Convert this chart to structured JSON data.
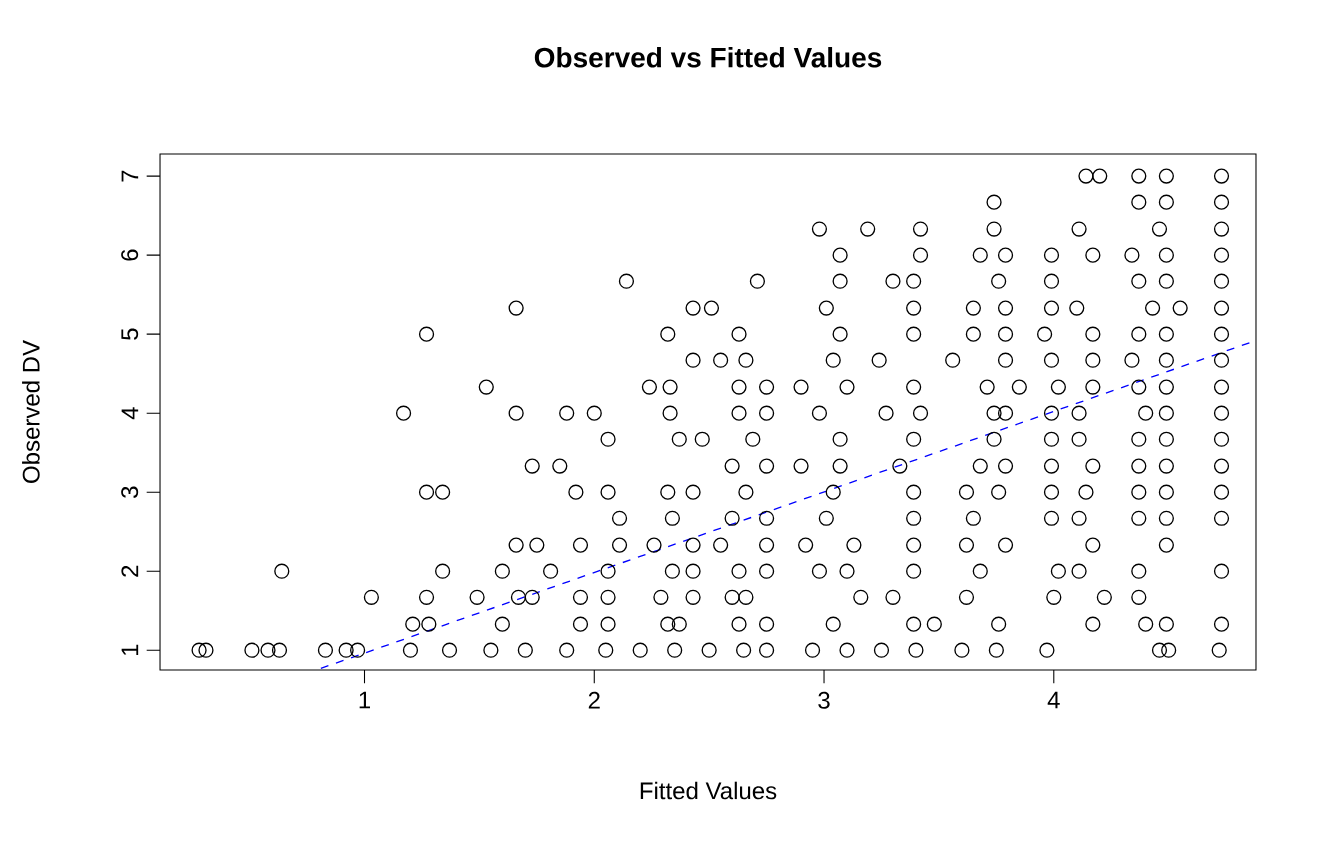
{
  "chart_data": {
    "type": "scatter",
    "title": "Observed vs Fitted Values",
    "xlabel": "Fitted Values",
    "ylabel": "Observed DV",
    "xlim": [
      0.11,
      4.88
    ],
    "ylim": [
      0.75,
      7.28
    ],
    "xticks": [
      1,
      2,
      3,
      4
    ],
    "yticks": [
      1,
      2,
      3,
      4,
      5,
      6,
      7
    ],
    "grid": false,
    "series": [
      {
        "color": "#000000",
        "marker": "circle",
        "x": [
          0.28,
          0.31,
          0.51,
          0.58,
          0.63,
          0.83,
          0.92,
          0.97,
          1.2,
          1.37,
          1.55,
          1.7,
          1.88,
          2.05,
          2.2,
          2.35,
          2.5,
          2.65,
          2.75,
          2.95,
          3.1,
          3.25,
          3.4,
          3.6,
          3.75,
          3.97,
          4.46,
          4.5,
          4.72,
          1.21,
          1.28,
          1.6,
          1.94,
          2.06,
          2.32,
          2.37,
          2.63,
          2.75,
          3.04,
          3.39,
          3.48,
          3.76,
          4.17,
          4.4,
          4.49,
          4.73,
          1.03,
          1.27,
          1.49,
          1.67,
          1.73,
          1.94,
          2.06,
          2.29,
          2.43,
          2.6,
          2.66,
          3.16,
          3.3,
          3.62,
          4.0,
          4.22,
          4.37,
          0.64,
          1.34,
          1.6,
          1.81,
          2.06,
          2.34,
          2.43,
          2.63,
          2.75,
          2.98,
          3.1,
          3.39,
          3.68,
          4.02,
          4.11,
          4.37,
          4.73,
          1.66,
          1.75,
          1.94,
          2.11,
          2.26,
          2.43,
          2.55,
          2.75,
          2.92,
          3.13,
          3.39,
          3.62,
          3.79,
          4.17,
          4.49,
          2.11,
          2.34,
          2.6,
          2.75,
          3.01,
          3.39,
          3.65,
          3.99,
          4.11,
          4.37,
          4.49,
          4.73,
          1.27,
          1.34,
          1.92,
          2.06,
          2.32,
          2.43,
          2.66,
          3.04,
          3.39,
          3.62,
          3.76,
          3.99,
          4.14,
          4.37,
          4.49,
          4.73,
          1.73,
          1.85,
          2.6,
          2.75,
          2.9,
          3.07,
          3.33,
          3.68,
          3.79,
          3.99,
          4.17,
          4.37,
          4.49,
          4.73,
          2.06,
          2.37,
          2.47,
          2.69,
          3.07,
          3.39,
          3.74,
          3.99,
          4.11,
          4.37,
          4.49,
          4.73,
          1.17,
          1.66,
          1.88,
          2.0,
          2.33,
          2.63,
          2.75,
          2.98,
          3.27,
          3.42,
          3.74,
          3.79,
          3.99,
          4.11,
          4.4,
          4.49,
          4.73,
          1.53,
          2.24,
          2.33,
          2.63,
          2.75,
          2.9,
          3.1,
          3.39,
          3.71,
          3.85,
          4.02,
          4.17,
          4.37,
          4.49,
          4.73,
          2.43,
          2.55,
          2.66,
          3.04,
          3.24,
          3.56,
          3.79,
          3.99,
          4.17,
          4.34,
          4.49,
          4.73,
          1.27,
          2.32,
          2.63,
          3.07,
          3.39,
          3.65,
          3.79,
          3.96,
          4.17,
          4.37,
          4.49,
          4.73,
          1.66,
          2.43,
          2.51,
          3.01,
          3.39,
          3.65,
          3.79,
          3.99,
          4.1,
          4.43,
          4.55,
          4.73,
          2.14,
          2.71,
          3.07,
          3.3,
          3.39,
          3.76,
          3.99,
          4.37,
          4.49,
          4.73,
          3.07,
          3.42,
          3.68,
          3.79,
          3.99,
          4.17,
          4.34,
          4.49,
          4.73,
          2.98,
          3.19,
          3.42,
          3.74,
          4.11,
          4.46,
          4.73,
          3.74,
          4.37,
          4.49,
          4.73,
          4.14,
          4.2,
          4.37,
          4.49,
          4.73
        ],
        "values": [
          1,
          1,
          1,
          1,
          1,
          1,
          1,
          1,
          1,
          1,
          1,
          1,
          1,
          1,
          1,
          1,
          1,
          1,
          1,
          1,
          1,
          1,
          1,
          1,
          1,
          1,
          1,
          1,
          1,
          1.33,
          1.33,
          1.33,
          1.33,
          1.33,
          1.33,
          1.33,
          1.33,
          1.33,
          1.33,
          1.33,
          1.33,
          1.33,
          1.33,
          1.33,
          1.33,
          1.33,
          1.67,
          1.67,
          1.67,
          1.67,
          1.67,
          1.67,
          1.67,
          1.67,
          1.67,
          1.67,
          1.67,
          1.67,
          1.67,
          1.67,
          1.67,
          1.67,
          1.67,
          2,
          2,
          2,
          2,
          2,
          2,
          2,
          2,
          2,
          2,
          2,
          2,
          2,
          2,
          2,
          2,
          2,
          2.33,
          2.33,
          2.33,
          2.33,
          2.33,
          2.33,
          2.33,
          2.33,
          2.33,
          2.33,
          2.33,
          2.33,
          2.33,
          2.33,
          2.33,
          2.67,
          2.67,
          2.67,
          2.67,
          2.67,
          2.67,
          2.67,
          2.67,
          2.67,
          2.67,
          2.67,
          2.67,
          3,
          3,
          3,
          3,
          3,
          3,
          3,
          3,
          3,
          3,
          3,
          3,
          3,
          3,
          3,
          3,
          3.33,
          3.33,
          3.33,
          3.33,
          3.33,
          3.33,
          3.33,
          3.33,
          3.33,
          3.33,
          3.33,
          3.33,
          3.33,
          3.33,
          3.67,
          3.67,
          3.67,
          3.67,
          3.67,
          3.67,
          3.67,
          3.67,
          3.67,
          3.67,
          3.67,
          3.67,
          4,
          4,
          4,
          4,
          4,
          4,
          4,
          4,
          4,
          4,
          4,
          4,
          4,
          4,
          4,
          4,
          4,
          4.33,
          4.33,
          4.33,
          4.33,
          4.33,
          4.33,
          4.33,
          4.33,
          4.33,
          4.33,
          4.33,
          4.33,
          4.33,
          4.33,
          4.33,
          4.67,
          4.67,
          4.67,
          4.67,
          4.67,
          4.67,
          4.67,
          4.67,
          4.67,
          4.67,
          4.67,
          4.67,
          5,
          5,
          5,
          5,
          5,
          5,
          5,
          5,
          5,
          5,
          5,
          5,
          5.33,
          5.33,
          5.33,
          5.33,
          5.33,
          5.33,
          5.33,
          5.33,
          5.33,
          5.33,
          5.33,
          5.33,
          5.67,
          5.67,
          5.67,
          5.67,
          5.67,
          5.67,
          5.67,
          5.67,
          5.67,
          5.67,
          6,
          6,
          6,
          6,
          6,
          6,
          6,
          6,
          6,
          6.33,
          6.33,
          6.33,
          6.33,
          6.33,
          6.33,
          6.33,
          6.67,
          6.67,
          6.67,
          6.67,
          7,
          7,
          7,
          7,
          7
        ]
      },
      {
        "type": "line",
        "color": "#0000ff",
        "line_style": "dashed",
        "x": [
          0.81,
          4.88
        ],
        "values": [
          0.77,
          4.92
        ]
      }
    ]
  }
}
